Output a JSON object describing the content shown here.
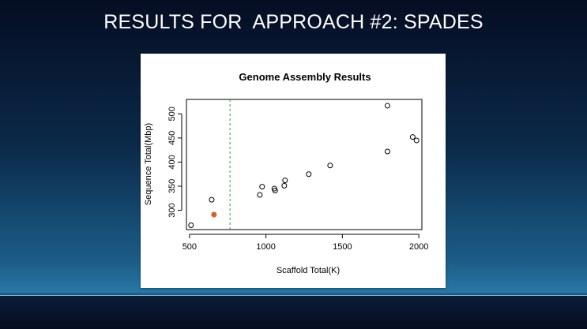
{
  "slide": {
    "title": "RESULTS FOR  APPROACH #2: SPADES"
  },
  "chart_data": {
    "type": "scatter",
    "title": "Genome Assembly Results",
    "xlabel": "Scaffold Total(K)",
    "ylabel": "Sequence Total(Mbp)",
    "xlim": [
      480,
      2020
    ],
    "ylim": [
      260,
      530
    ],
    "xticks": [
      500,
      1000,
      1500,
      2000
    ],
    "yticks": [
      300,
      350,
      400,
      450,
      500
    ],
    "grid": false,
    "vline": {
      "x": 765,
      "color": "#2ca02c",
      "style": "dashed"
    },
    "points": [
      {
        "x": 510,
        "y": 269
      },
      {
        "x": 645,
        "y": 322
      },
      {
        "x": 960,
        "y": 332
      },
      {
        "x": 975,
        "y": 349
      },
      {
        "x": 1055,
        "y": 345
      },
      {
        "x": 1060,
        "y": 341
      },
      {
        "x": 1120,
        "y": 351
      },
      {
        "x": 1125,
        "y": 362
      },
      {
        "x": 1280,
        "y": 375
      },
      {
        "x": 1420,
        "y": 393
      },
      {
        "x": 1795,
        "y": 422
      },
      {
        "x": 1795,
        "y": 517
      },
      {
        "x": 1960,
        "y": 452
      },
      {
        "x": 1985,
        "y": 445
      }
    ],
    "highlight": {
      "x": 660,
      "y": 291,
      "color": "#d2622a"
    }
  }
}
